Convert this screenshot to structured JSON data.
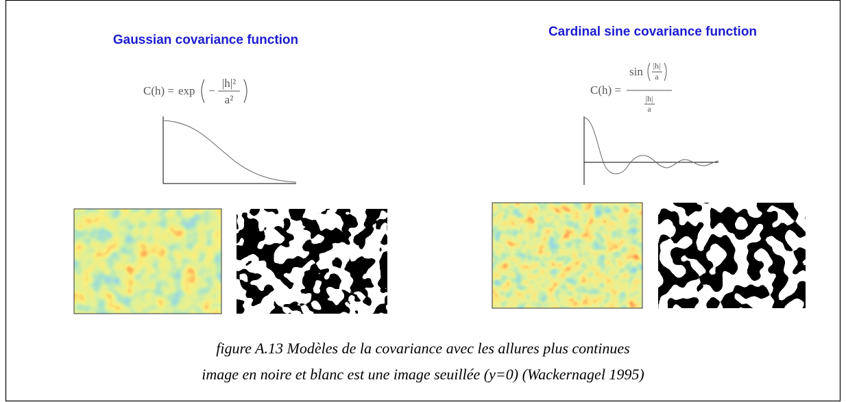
{
  "left_panel": {
    "title": "Gaussian covariance function",
    "formula": {
      "lhs": "C(h) =",
      "func": "exp",
      "sign": "−",
      "numerator": "|h|²",
      "denominator": "a²"
    }
  },
  "right_panel": {
    "title": "Cardinal sine covariance function",
    "formula": {
      "lhs": "C(h) =",
      "func": "sin",
      "inner_numerator": "|h|",
      "inner_denominator": "a",
      "outer_numerator": "|h|",
      "outer_denominator": "a"
    }
  },
  "caption": {
    "line1": "figure A.13  Modèles de la covariance avec les allures plus continues",
    "line2": "image en noire et blanc est une image seuillée (y=0) (Wackernagel 1995)"
  }
}
